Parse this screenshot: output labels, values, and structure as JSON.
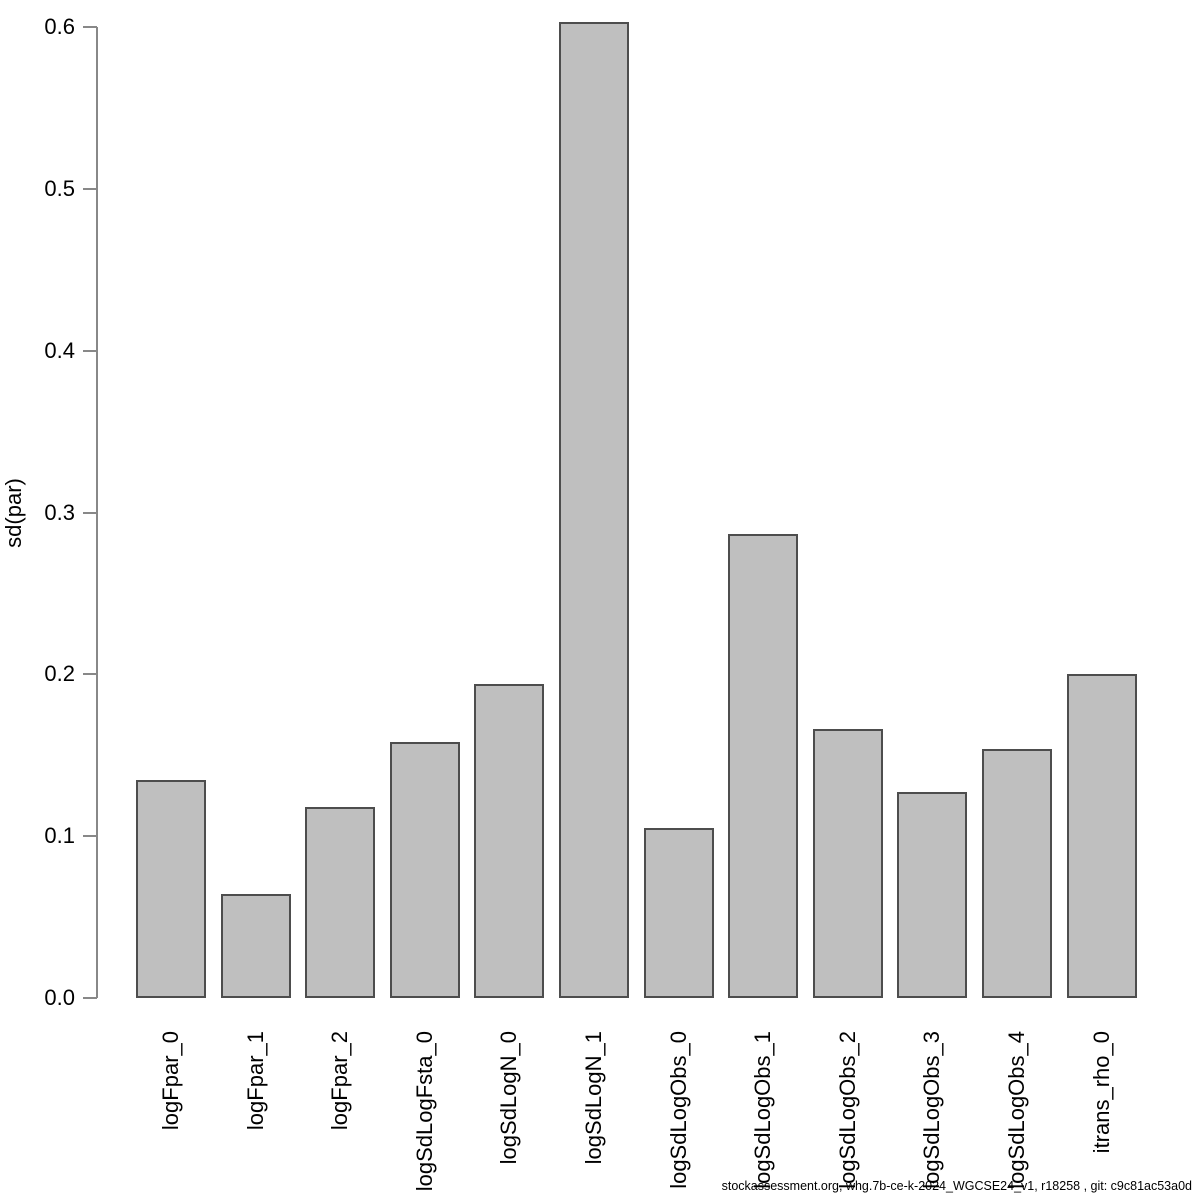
{
  "chart_data": {
    "type": "bar",
    "title": "",
    "xlabel": "",
    "ylabel": "sd(par)",
    "categories": [
      "logFpar_0",
      "logFpar_1",
      "logFpar_2",
      "logSdLogFsta_0",
      "logSdLogN_0",
      "logSdLogN_1",
      "logSdLogObs_0",
      "logSdLogObs_1",
      "logSdLogObs_2",
      "logSdLogObs_3",
      "logSdLogObs_4",
      "itrans_rho_0"
    ],
    "values": [
      0.135,
      0.064,
      0.118,
      0.158,
      0.194,
      0.603,
      0.105,
      0.287,
      0.166,
      0.127,
      0.154,
      0.2
    ],
    "ylim": [
      0.0,
      0.6
    ],
    "yticks": [
      0.0,
      0.1,
      0.2,
      0.3,
      0.4,
      0.5,
      0.6
    ],
    "ytick_labels": [
      "0.0",
      "0.1",
      "0.2",
      "0.3",
      "0.4",
      "0.5",
      "0.6"
    ],
    "grid": false,
    "legend": false,
    "bar_fill_color": "#bfbfbf",
    "bar_border_color": "#4d4d4d",
    "axis_color": "#888888"
  },
  "footer": {
    "text": "stockassessment.org, whg.7b-ce-k-2024_WGCSE24_v1, r18258 , git: c9c81ac53a0d"
  }
}
